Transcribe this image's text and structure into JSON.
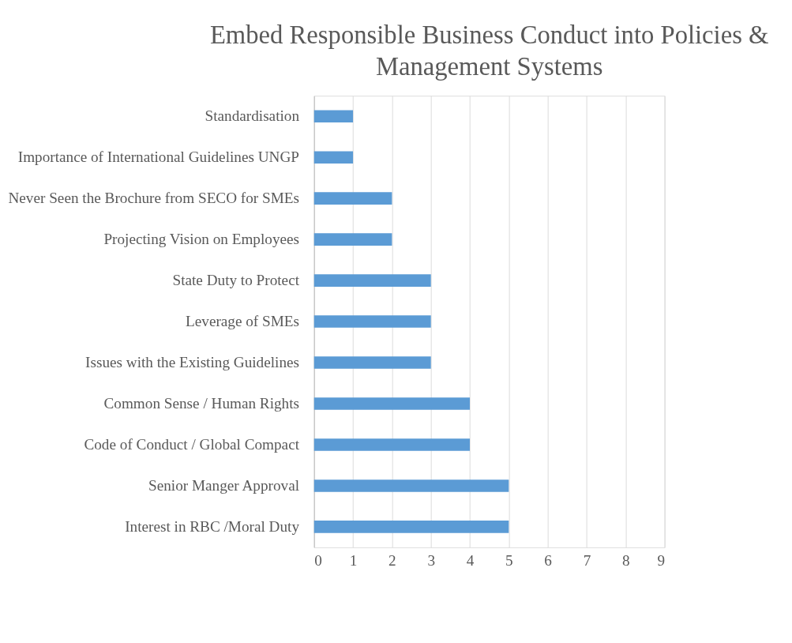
{
  "chart_data": {
    "type": "bar",
    "orientation": "horizontal",
    "title": "Embed Responsible Business Conduct into Policies & Management Systems",
    "categories": [
      "Standardisation",
      "Importance of International Guidelines UNGP",
      "Never Seen the Brochure from SECO for SMEs",
      "Projecting Vision on Employees",
      "State Duty to Protect",
      "Leverage of SMEs",
      "Issues with the Existing Guidelines",
      "Common Sense / Human Rights",
      "Code of Conduct / Global Compact",
      "Senior Manger Approval",
      "Interest in RBC /Moral Duty"
    ],
    "values": [
      1,
      1,
      2,
      2,
      3,
      3,
      3,
      4,
      4,
      5,
      5
    ],
    "color": "#5b9bd5",
    "xlim": [
      0,
      9
    ],
    "xticks": [
      0,
      1,
      2,
      3,
      4,
      5,
      6,
      7,
      8,
      9
    ],
    "grid": "x"
  }
}
